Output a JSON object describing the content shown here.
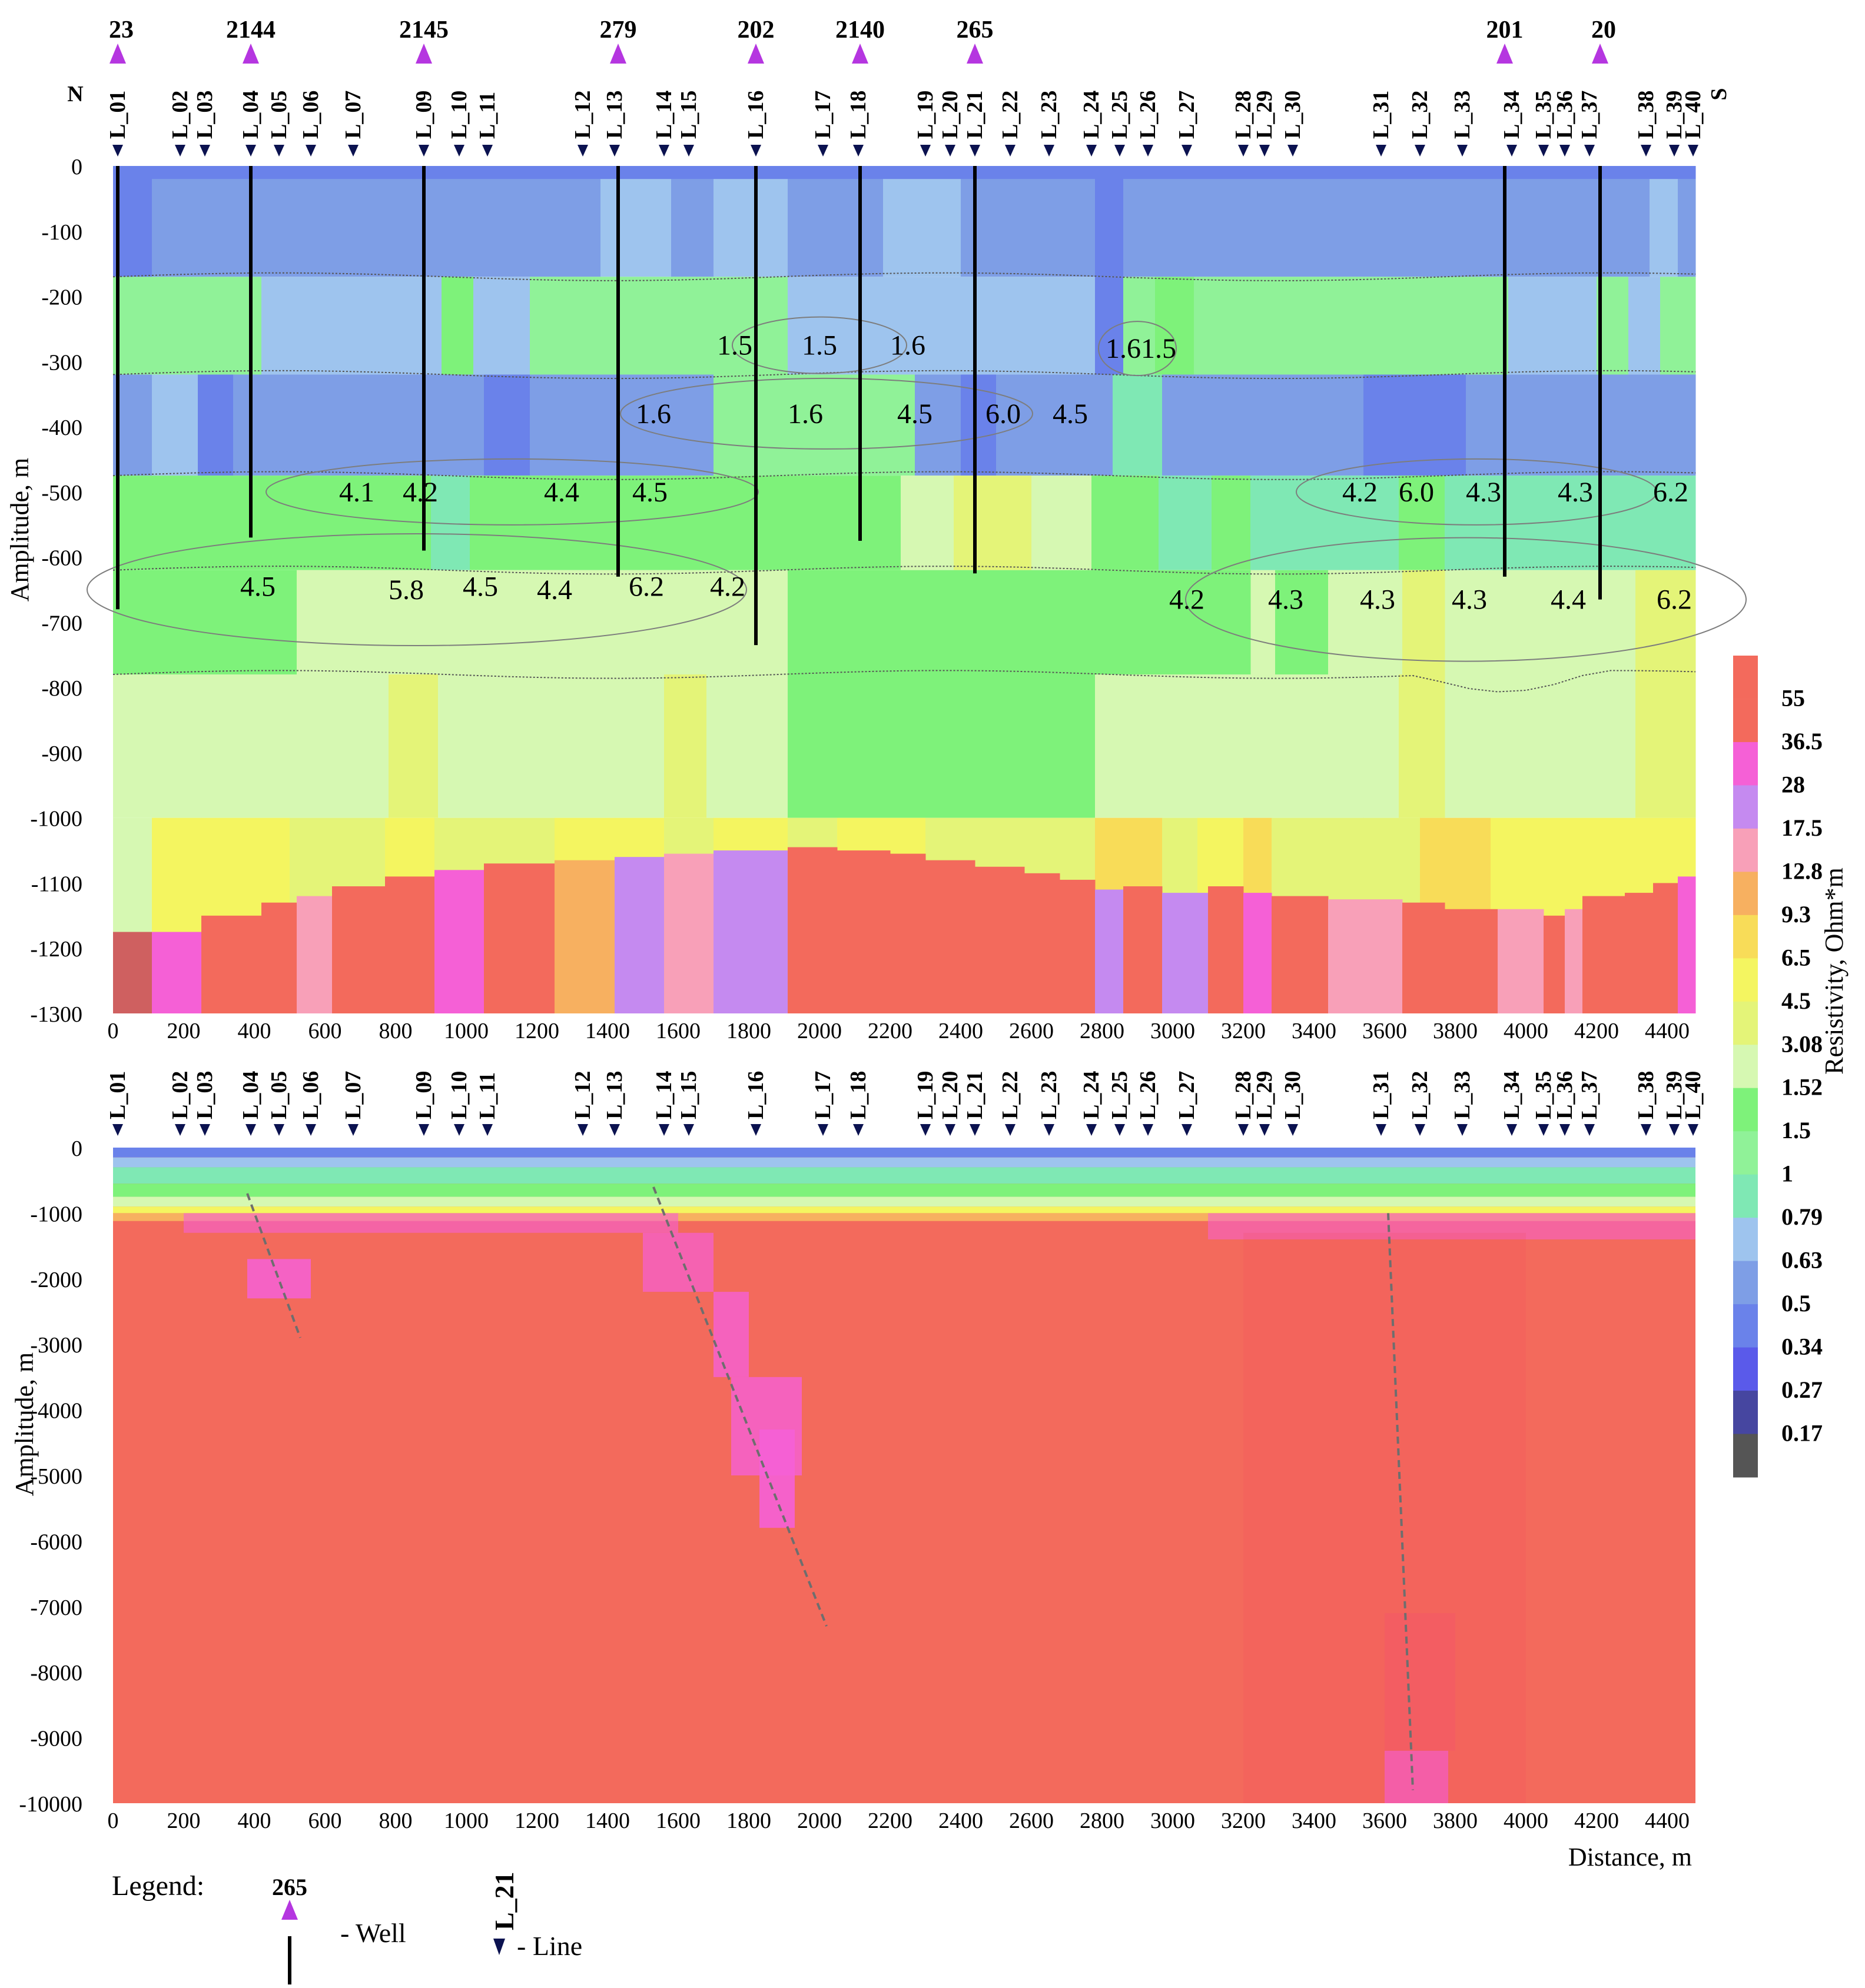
{
  "chart_data": [
    {
      "type": "heatmap",
      "title": "",
      "xlabel": "",
      "ylabel": "Amplitude, m",
      "x_ticks": [
        "0",
        "200",
        "400",
        "600",
        "800",
        "1000",
        "1200",
        "1400",
        "1600",
        "1800",
        "2000",
        "2200",
        "2400",
        "2600",
        "2800",
        "3000",
        "3200",
        "3400",
        "3600",
        "3800",
        "4000",
        "4200",
        "4400"
      ],
      "y_ticks": [
        "0",
        "-100",
        "-200",
        "-300",
        "-400",
        "-500",
        "-600",
        "-700",
        "-800",
        "-900",
        "-1000",
        "-1100",
        "-1200",
        "-1300"
      ],
      "xlim": [
        0,
        4480
      ],
      "ylim": [
        -1300,
        0
      ],
      "profile_ends": {
        "left": "N",
        "right": "S"
      },
      "wells": [
        {
          "label": "23",
          "x": 0,
          "bottom": -680
        },
        {
          "label": "2144",
          "x": 390,
          "bottom": -570
        },
        {
          "label": "2145",
          "x": 880,
          "bottom": -590
        },
        {
          "label": "279",
          "x": 1430,
          "bottom": -630
        },
        {
          "label": "202",
          "x": 1820,
          "bottom": -735
        },
        {
          "label": "2140",
          "x": 2115,
          "bottom": -575
        },
        {
          "label": "265",
          "x": 2440,
          "bottom": -625
        },
        {
          "label": "201",
          "x": 3940,
          "bottom": -630
        },
        {
          "label": "20",
          "x": 4210,
          "bottom": -665
        }
      ],
      "annotations": [
        {
          "text": "1.5",
          "x": 1760,
          "y": -275
        },
        {
          "text": "1.5",
          "x": 2000,
          "y": -275
        },
        {
          "text": "1.6",
          "x": 2250,
          "y": -275
        },
        {
          "text": "1.6",
          "x": 2860,
          "y": -280
        },
        {
          "text": "1.5",
          "x": 2960,
          "y": -280
        },
        {
          "text": "1.6",
          "x": 1530,
          "y": -380
        },
        {
          "text": "1.6",
          "x": 1960,
          "y": -380
        },
        {
          "text": "4.5",
          "x": 2270,
          "y": -380
        },
        {
          "text": "6.0",
          "x": 2520,
          "y": -380
        },
        {
          "text": "4.5",
          "x": 2710,
          "y": -380
        },
        {
          "text": "4.1",
          "x": 690,
          "y": -500
        },
        {
          "text": "4.2",
          "x": 870,
          "y": -500
        },
        {
          "text": "4.4",
          "x": 1270,
          "y": -500
        },
        {
          "text": "4.5",
          "x": 1520,
          "y": -500
        },
        {
          "text": "4.2",
          "x": 3530,
          "y": -500
        },
        {
          "text": "6.0",
          "x": 3690,
          "y": -500
        },
        {
          "text": "4.3",
          "x": 3880,
          "y": -500
        },
        {
          "text": "4.3",
          "x": 4140,
          "y": -500
        },
        {
          "text": "6.2",
          "x": 4410,
          "y": -500
        },
        {
          "text": "4.5",
          "x": 410,
          "y": -645
        },
        {
          "text": "5.8",
          "x": 830,
          "y": -650
        },
        {
          "text": "4.5",
          "x": 1040,
          "y": -645
        },
        {
          "text": "4.4",
          "x": 1250,
          "y": -650
        },
        {
          "text": "6.2",
          "x": 1510,
          "y": -645
        },
        {
          "text": "4.2",
          "x": 1740,
          "y": -645
        },
        {
          "text": "4.2",
          "x": 3040,
          "y": -665
        },
        {
          "text": "4.3",
          "x": 3320,
          "y": -665
        },
        {
          "text": "4.3",
          "x": 3580,
          "y": -665
        },
        {
          "text": "4.3",
          "x": 3840,
          "y": -665
        },
        {
          "text": "4.4",
          "x": 4120,
          "y": -665
        },
        {
          "text": "6.2",
          "x": 4420,
          "y": -665
        }
      ]
    },
    {
      "type": "heatmap",
      "title": "",
      "xlabel": "Distance, m",
      "ylabel": "Amplitude, m",
      "x_ticks": [
        "0",
        "200",
        "400",
        "600",
        "800",
        "1000",
        "1200",
        "1400",
        "1600",
        "1800",
        "2000",
        "2200",
        "2400",
        "2600",
        "2800",
        "3000",
        "3200",
        "3400",
        "3600",
        "3800",
        "4000",
        "4200",
        "4400"
      ],
      "y_ticks": [
        "0",
        "-1000",
        "-2000",
        "-3000",
        "-4000",
        "-5000",
        "-6000",
        "-7000",
        "-8000",
        "-9000",
        "-10000"
      ],
      "xlim": [
        0,
        4480
      ],
      "ylim": [
        -10000,
        0
      ],
      "dashed_lines": [
        {
          "from": [
            380,
            -700
          ],
          "to": [
            530,
            -2900
          ]
        },
        {
          "from": [
            1530,
            -600
          ],
          "to": [
            2020,
            -7300
          ]
        },
        {
          "from": [
            3610,
            -1000
          ],
          "to": [
            3680,
            -9800
          ]
        }
      ]
    }
  ],
  "survey_lines": [
    {
      "label": "L_01",
      "x": 0
    },
    {
      "label": "L_02",
      "x": 190
    },
    {
      "label": "L_03",
      "x": 260
    },
    {
      "label": "L_04",
      "x": 390
    },
    {
      "label": "L_05",
      "x": 470
    },
    {
      "label": "L_06",
      "x": 560
    },
    {
      "label": "L_07",
      "x": 680
    },
    {
      "label": "L_09",
      "x": 880
    },
    {
      "label": "L_10",
      "x": 980
    },
    {
      "label": "L_11",
      "x": 1060
    },
    {
      "label": "L_12",
      "x": 1330
    },
    {
      "label": "L_13",
      "x": 1420
    },
    {
      "label": "L_14",
      "x": 1560
    },
    {
      "label": "L_15",
      "x": 1630
    },
    {
      "label": "L_16",
      "x": 1820
    },
    {
      "label": "L_17",
      "x": 2010
    },
    {
      "label": "L_18",
      "x": 2110
    },
    {
      "label": "L_19",
      "x": 2300
    },
    {
      "label": "L_20",
      "x": 2370
    },
    {
      "label": "L_21",
      "x": 2440
    },
    {
      "label": "L_22",
      "x": 2540
    },
    {
      "label": "L_23",
      "x": 2650
    },
    {
      "label": "L_24",
      "x": 2770
    },
    {
      "label": "L_25",
      "x": 2850
    },
    {
      "label": "L_26",
      "x": 2930
    },
    {
      "label": "L_27",
      "x": 3040
    },
    {
      "label": "L_28",
      "x": 3200
    },
    {
      "label": "L_29",
      "x": 3260
    },
    {
      "label": "L_30",
      "x": 3340
    },
    {
      "label": "L_31",
      "x": 3590
    },
    {
      "label": "L_32",
      "x": 3700
    },
    {
      "label": "L_33",
      "x": 3820
    },
    {
      "label": "L_34",
      "x": 3960
    },
    {
      "label": "L_35",
      "x": 4050
    },
    {
      "label": "L_36",
      "x": 4110
    },
    {
      "label": "L_37",
      "x": 4180
    },
    {
      "label": "L_38",
      "x": 4340
    },
    {
      "label": "L_39",
      "x": 4420
    },
    {
      "label": "L_40",
      "x": 4500
    }
  ],
  "colorbar": {
    "label": "Resistivity, Ohm*m",
    "entries": [
      {
        "value": "55",
        "color": "#f36a5c"
      },
      {
        "value": "36.5",
        "color": "#f560d6"
      },
      {
        "value": "28",
        "color": "#c58af0"
      },
      {
        "value": "17.5",
        "color": "#f8a0b8"
      },
      {
        "value": "12.8",
        "color": "#f7b060"
      },
      {
        "value": "9.3",
        "color": "#f8dc58"
      },
      {
        "value": "6.5",
        "color": "#f4f560"
      },
      {
        "value": "4.5",
        "color": "#e4f478"
      },
      {
        "value": "3.08",
        "color": "#d6f8b2"
      },
      {
        "value": "1.52",
        "color": "#7ef27a"
      },
      {
        "value": "1.5",
        "color": "#90f298"
      },
      {
        "value": "1",
        "color": "#7fe8b4"
      },
      {
        "value": "0.79",
        "color": "#9ec4ee"
      },
      {
        "value": "0.63",
        "color": "#7e9ee6"
      },
      {
        "value": "0.5",
        "color": "#6a82ea"
      },
      {
        "value": "0.34",
        "color": "#5a5aea"
      },
      {
        "value": "0.27",
        "color": "#4646a0"
      },
      {
        "value": "0.17",
        "color": "#555555"
      }
    ],
    "top_color": "#f36a5c",
    "bottom_color": "#555555"
  },
  "legend": {
    "title": "Legend:",
    "well_example_label": "265",
    "well_text": "- Well",
    "line_example_label": "L_21",
    "line_text": "- Line"
  },
  "colors": {
    "well_marker": "#b536e0",
    "line_marker": "#0b1250",
    "dashed_fault": "#6e6e6e"
  }
}
